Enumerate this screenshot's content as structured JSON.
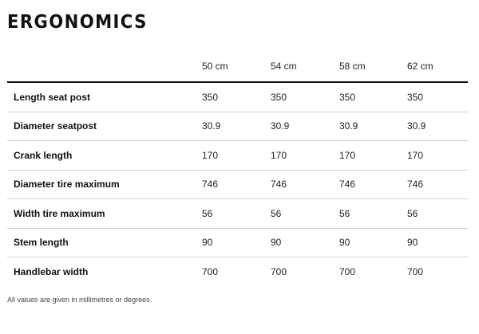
{
  "title": "ERGONOMICS",
  "columns": [
    "50 cm",
    "54 cm",
    "58 cm",
    "62 cm"
  ],
  "rows": [
    {
      "label": "Length seat post",
      "values": [
        "350",
        "350",
        "350",
        "350"
      ]
    },
    {
      "label": "Diameter seatpost",
      "values": [
        "30.9",
        "30.9",
        "30.9",
        "30.9"
      ]
    },
    {
      "label": "Crank length",
      "values": [
        "170",
        "170",
        "170",
        "170"
      ]
    },
    {
      "label": "Diameter tire maximum",
      "values": [
        "746",
        "746",
        "746",
        "746"
      ]
    },
    {
      "label": "Width tire maximum",
      "values": [
        "56",
        "56",
        "56",
        "56"
      ]
    },
    {
      "label": "Stem length",
      "values": [
        "90",
        "90",
        "90",
        "90"
      ]
    },
    {
      "label": "Handlebar width",
      "values": [
        "700",
        "700",
        "700",
        "700"
      ]
    }
  ],
  "footnote": "All values are given in millimetres or degrees."
}
